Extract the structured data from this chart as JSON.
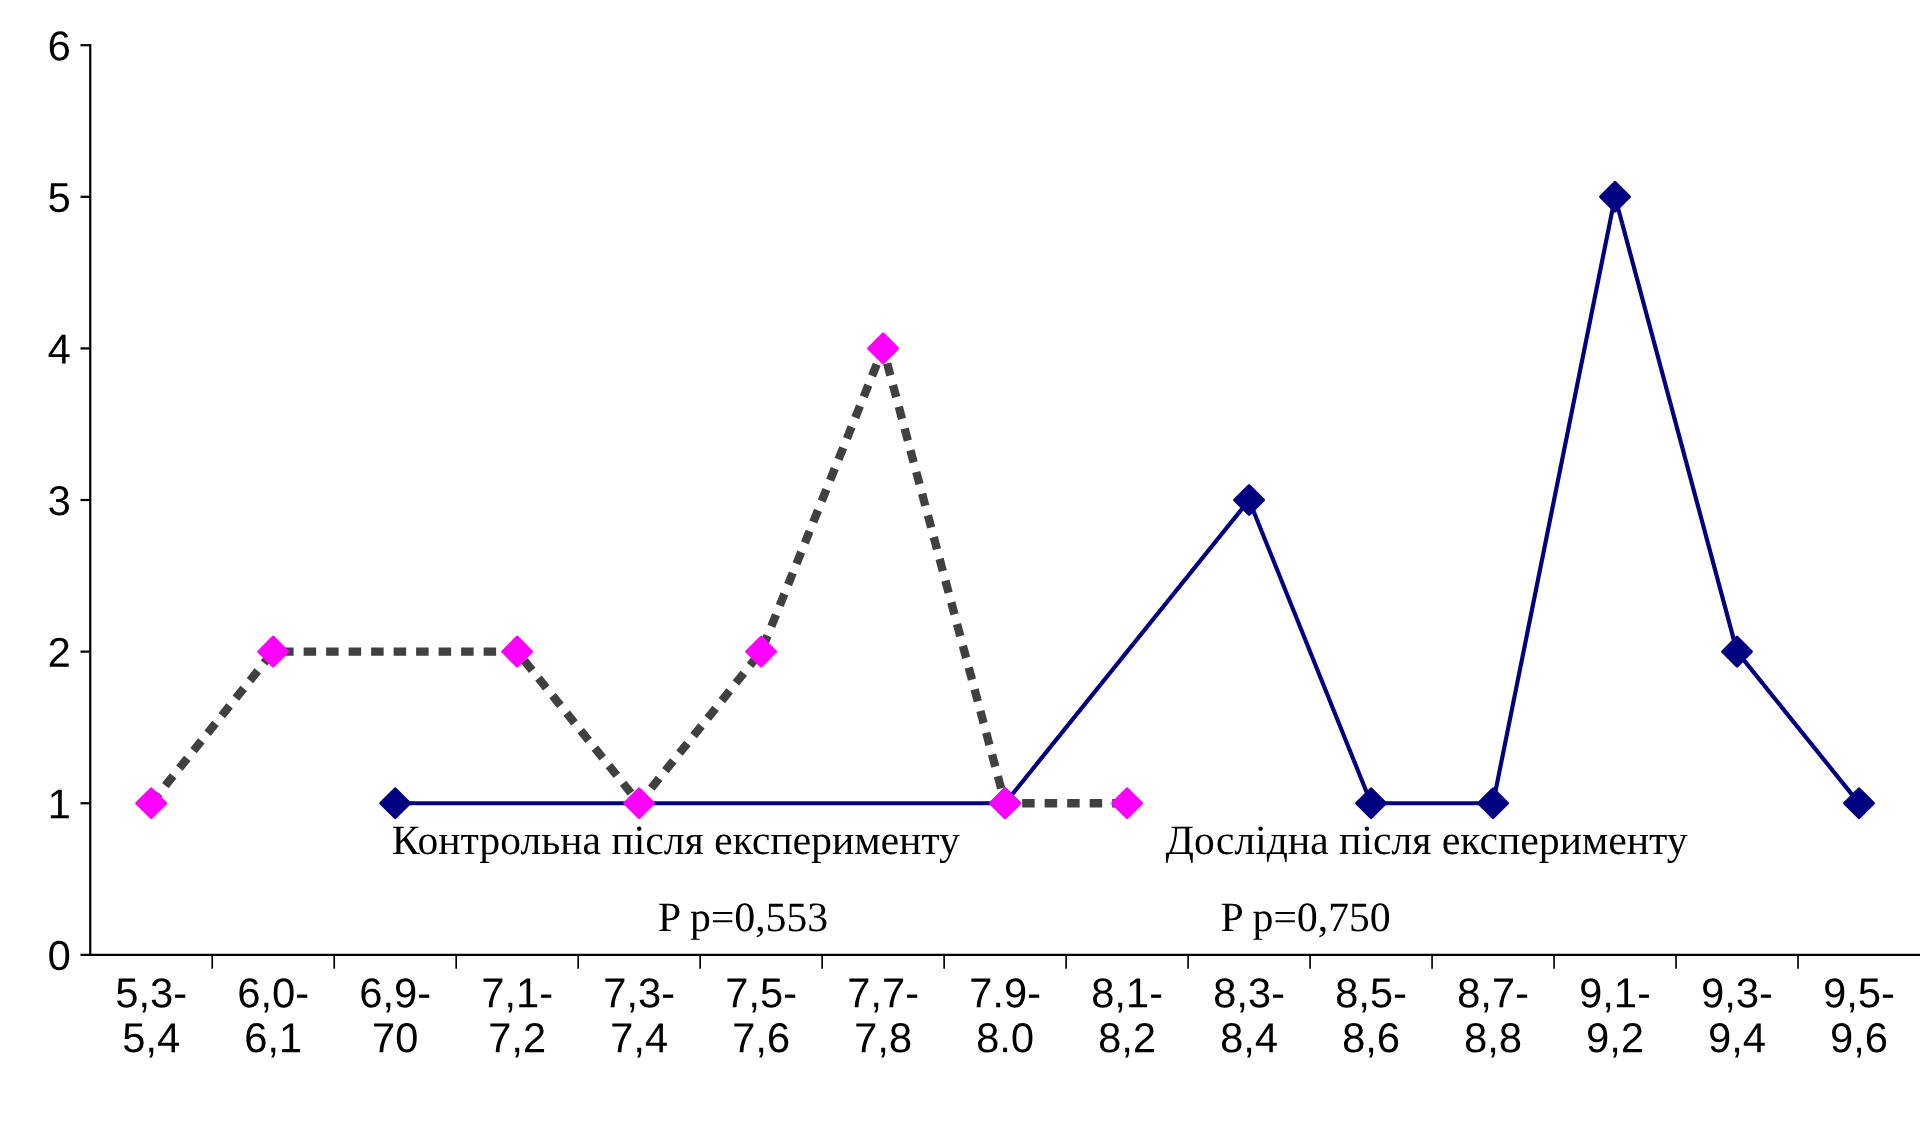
{
  "chart_data": {
    "type": "line",
    "categories": [
      "5,3-\n5,4",
      "6,0-\n6,1",
      "6,9-\n70",
      "7,1-\n7,2",
      "7,3-\n7,4",
      "7,5-\n7,6",
      "7,7-\n7,8",
      "7.9-\n8.0",
      "8,1-\n8,2",
      "8,3-\n8,4",
      "8,5-\n8,6",
      "8,7-\n8,8",
      "9,1-\n9,2",
      "9,3-\n9,4",
      "9,5-\n9,6"
    ],
    "series": [
      {
        "color": "#000080",
        "line_style": "solid",
        "values": [
          null,
          null,
          1,
          null,
          null,
          null,
          null,
          1,
          null,
          3,
          1,
          1,
          5,
          2,
          1
        ]
      },
      {
        "color": "#404040",
        "colors": [
          "#ff00ff",
          "#ff00ff",
          "#ff00ff",
          "#ff00ff",
          "#ff00ff",
          "#ff00ff",
          "#ff00ff",
          "#ff00ff",
          "#ff00ff",
          "#ff00ff",
          "#ff00ff",
          "#ff00ff",
          "#ff00ff",
          "#ff00ff",
          "#ff00ff"
        ],
        "line_style": "dashed",
        "values": [
          1,
          2,
          null,
          2,
          1,
          2,
          4,
          1,
          1,
          null,
          null,
          null,
          null,
          null,
          null
        ]
      }
    ],
    "ylim": [
      0,
      6
    ],
    "yticks": [
      0,
      1,
      2,
      3,
      4,
      5,
      6
    ],
    "grid": false,
    "legend": false,
    "marker": "diamond",
    "annotations": [
      "Контрольна після експерименту",
      "P p=0,553",
      "Дослідна після експерименту",
      "P p=0,750"
    ]
  }
}
